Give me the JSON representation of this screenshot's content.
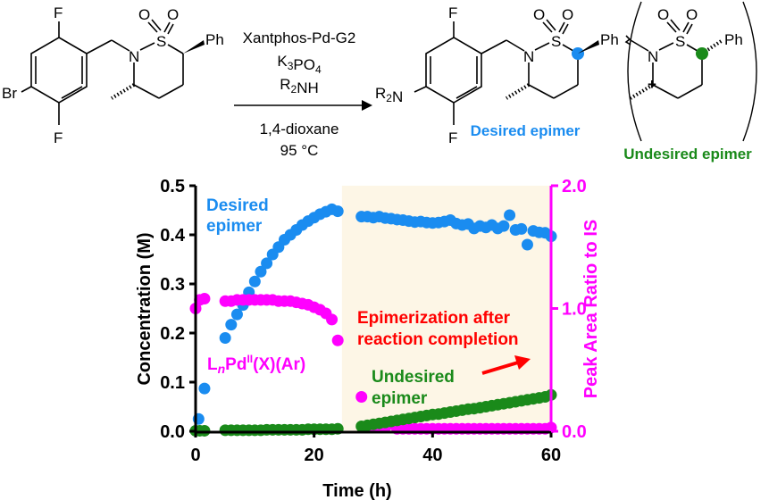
{
  "scheme": {
    "reactant_atoms": {
      "F_top": "F",
      "F_bottom": "F",
      "Br": "Br",
      "N": "N",
      "S": "S",
      "O1": "O",
      "O2": "O",
      "Ph": "Ph"
    },
    "reagents": [
      "Xantphos-Pd-G2",
      "K3PO4",
      "R2NH"
    ],
    "conditions": [
      "1,4-dioxane",
      "95 °C"
    ],
    "product_atoms": {
      "F_top": "F",
      "F_bottom": "F",
      "R2N": "R2N",
      "N": "N",
      "S": "S",
      "O1": "O",
      "O2": "O",
      "Ph": "Ph"
    },
    "undesired_atoms": {
      "plus": "+",
      "N": "N",
      "S": "S",
      "O1": "O",
      "O2": "O",
      "Ph": "Ph"
    },
    "desired_label": "Desired epimer",
    "undesired_label": "Undesired epimer",
    "colors": {
      "desired": "#1a8cf0",
      "undesired": "#1a8a1a"
    }
  },
  "chart_data": {
    "type": "scatter",
    "xlabel": "Time (h)",
    "ylabel": "Concentration (M)",
    "y2label": "Peak Area Ratio to IS",
    "xlim": [
      0,
      60
    ],
    "ylim": [
      0,
      0.5
    ],
    "y2lim": [
      0,
      2.0
    ],
    "xticks": [
      "0",
      "20",
      "40",
      "60"
    ],
    "yticks": [
      "0.0",
      "0.1",
      "0.2",
      "0.3",
      "0.4",
      "0.5"
    ],
    "y2ticks": [
      "0.0",
      "1.0",
      "2.0"
    ],
    "shaded_region": [
      24.7,
      60
    ],
    "annotations": {
      "desired": [
        "Desired",
        "epimer"
      ],
      "pd": [
        "L",
        "n",
        "Pd",
        "II",
        "(X)(Ar)"
      ],
      "undesired": [
        "Undesired",
        "epimer"
      ],
      "epimerization": [
        "Epimerization after",
        "reaction completion"
      ]
    },
    "series": [
      {
        "name": "Desired epimer",
        "axis": "left",
        "color": "#1a8cf0",
        "x": [
          0.5,
          1.5,
          5,
          6,
          7,
          8,
          9,
          10,
          11,
          12,
          13,
          14,
          15,
          16,
          17,
          18,
          19,
          20,
          21,
          22,
          23,
          24,
          28,
          29,
          30,
          31,
          32,
          33,
          34,
          35,
          36,
          37,
          38,
          39,
          40,
          41,
          42,
          43,
          44,
          45,
          46,
          47,
          48,
          49,
          50,
          51,
          52,
          53,
          54,
          55,
          56,
          57,
          58,
          59,
          60
        ],
        "y": [
          0.025,
          0.087,
          0.19,
          0.217,
          0.238,
          0.257,
          0.283,
          0.305,
          0.325,
          0.342,
          0.36,
          0.375,
          0.39,
          0.4,
          0.41,
          0.42,
          0.428,
          0.435,
          0.442,
          0.447,
          0.452,
          0.448,
          0.437,
          0.437,
          0.435,
          0.437,
          0.434,
          0.433,
          0.431,
          0.43,
          0.428,
          0.426,
          0.427,
          0.425,
          0.424,
          0.425,
          0.427,
          0.43,
          0.423,
          0.42,
          0.422,
          0.413,
          0.418,
          0.415,
          0.42,
          0.413,
          0.418,
          0.44,
          0.41,
          0.412,
          0.38,
          0.408,
          0.405,
          0.404,
          0.397
        ]
      },
      {
        "name": "LnPdII(X)(Ar)",
        "axis": "right",
        "color": "#ff00ff",
        "x": [
          0,
          0.7,
          1.5,
          5,
          6,
          7,
          8,
          9,
          10,
          11,
          12,
          13,
          14,
          15,
          16,
          17,
          18,
          19,
          20,
          21,
          22,
          23,
          24,
          28,
          29,
          30,
          31,
          32,
          33,
          34,
          35,
          36,
          37,
          38,
          39,
          40,
          41,
          42,
          43,
          44,
          45,
          46,
          47,
          48,
          49,
          50,
          51,
          52,
          53,
          54,
          55,
          56,
          57,
          58,
          59,
          60
        ],
        "y": [
          1.0,
          1.07,
          1.08,
          1.06,
          1.06,
          1.07,
          1.07,
          1.07,
          1.07,
          1.07,
          1.07,
          1.07,
          1.06,
          1.06,
          1.06,
          1.05,
          1.04,
          1.03,
          1.01,
          0.99,
          0.96,
          0.91,
          0.74,
          0.28,
          0.03,
          0.03,
          0.03,
          0.03,
          0.06,
          0.02,
          0.02,
          0.02,
          0.02,
          0.02,
          0.02,
          0.02,
          0.02,
          0.02,
          0.02,
          0.02,
          0.02,
          0.02,
          0.02,
          0.02,
          0.02,
          0.02,
          0.02,
          0.02,
          0.02,
          0.02,
          0.02,
          0.02,
          0.02,
          0.02,
          0.02,
          0.03
        ]
      },
      {
        "name": "Undesired epimer",
        "axis": "left",
        "color": "#1a8a1a",
        "x": [
          0,
          0.7,
          1.5,
          5,
          6,
          7,
          8,
          9,
          10,
          11,
          12,
          13,
          14,
          15,
          16,
          17,
          18,
          19,
          20,
          21,
          22,
          23,
          24,
          28,
          29,
          30,
          31,
          32,
          33,
          34,
          35,
          36,
          37,
          38,
          39,
          40,
          41,
          42,
          43,
          44,
          45,
          46,
          47,
          48,
          49,
          50,
          51,
          52,
          53,
          54,
          55,
          56,
          57,
          58,
          59,
          60
        ],
        "y": [
          0.001,
          0.001,
          0.001,
          0.002,
          0.002,
          0.002,
          0.002,
          0.002,
          0.002,
          0.002,
          0.003,
          0.003,
          0.003,
          0.003,
          0.003,
          0.003,
          0.003,
          0.004,
          0.004,
          0.004,
          0.004,
          0.004,
          0.005,
          0.01,
          0.012,
          0.014,
          0.016,
          0.018,
          0.02,
          0.022,
          0.024,
          0.026,
          0.028,
          0.03,
          0.032,
          0.034,
          0.035,
          0.037,
          0.039,
          0.041,
          0.043,
          0.045,
          0.046,
          0.048,
          0.05,
          0.052,
          0.054,
          0.056,
          0.058,
          0.06,
          0.062,
          0.064,
          0.066,
          0.068,
          0.07,
          0.074
        ]
      }
    ]
  }
}
